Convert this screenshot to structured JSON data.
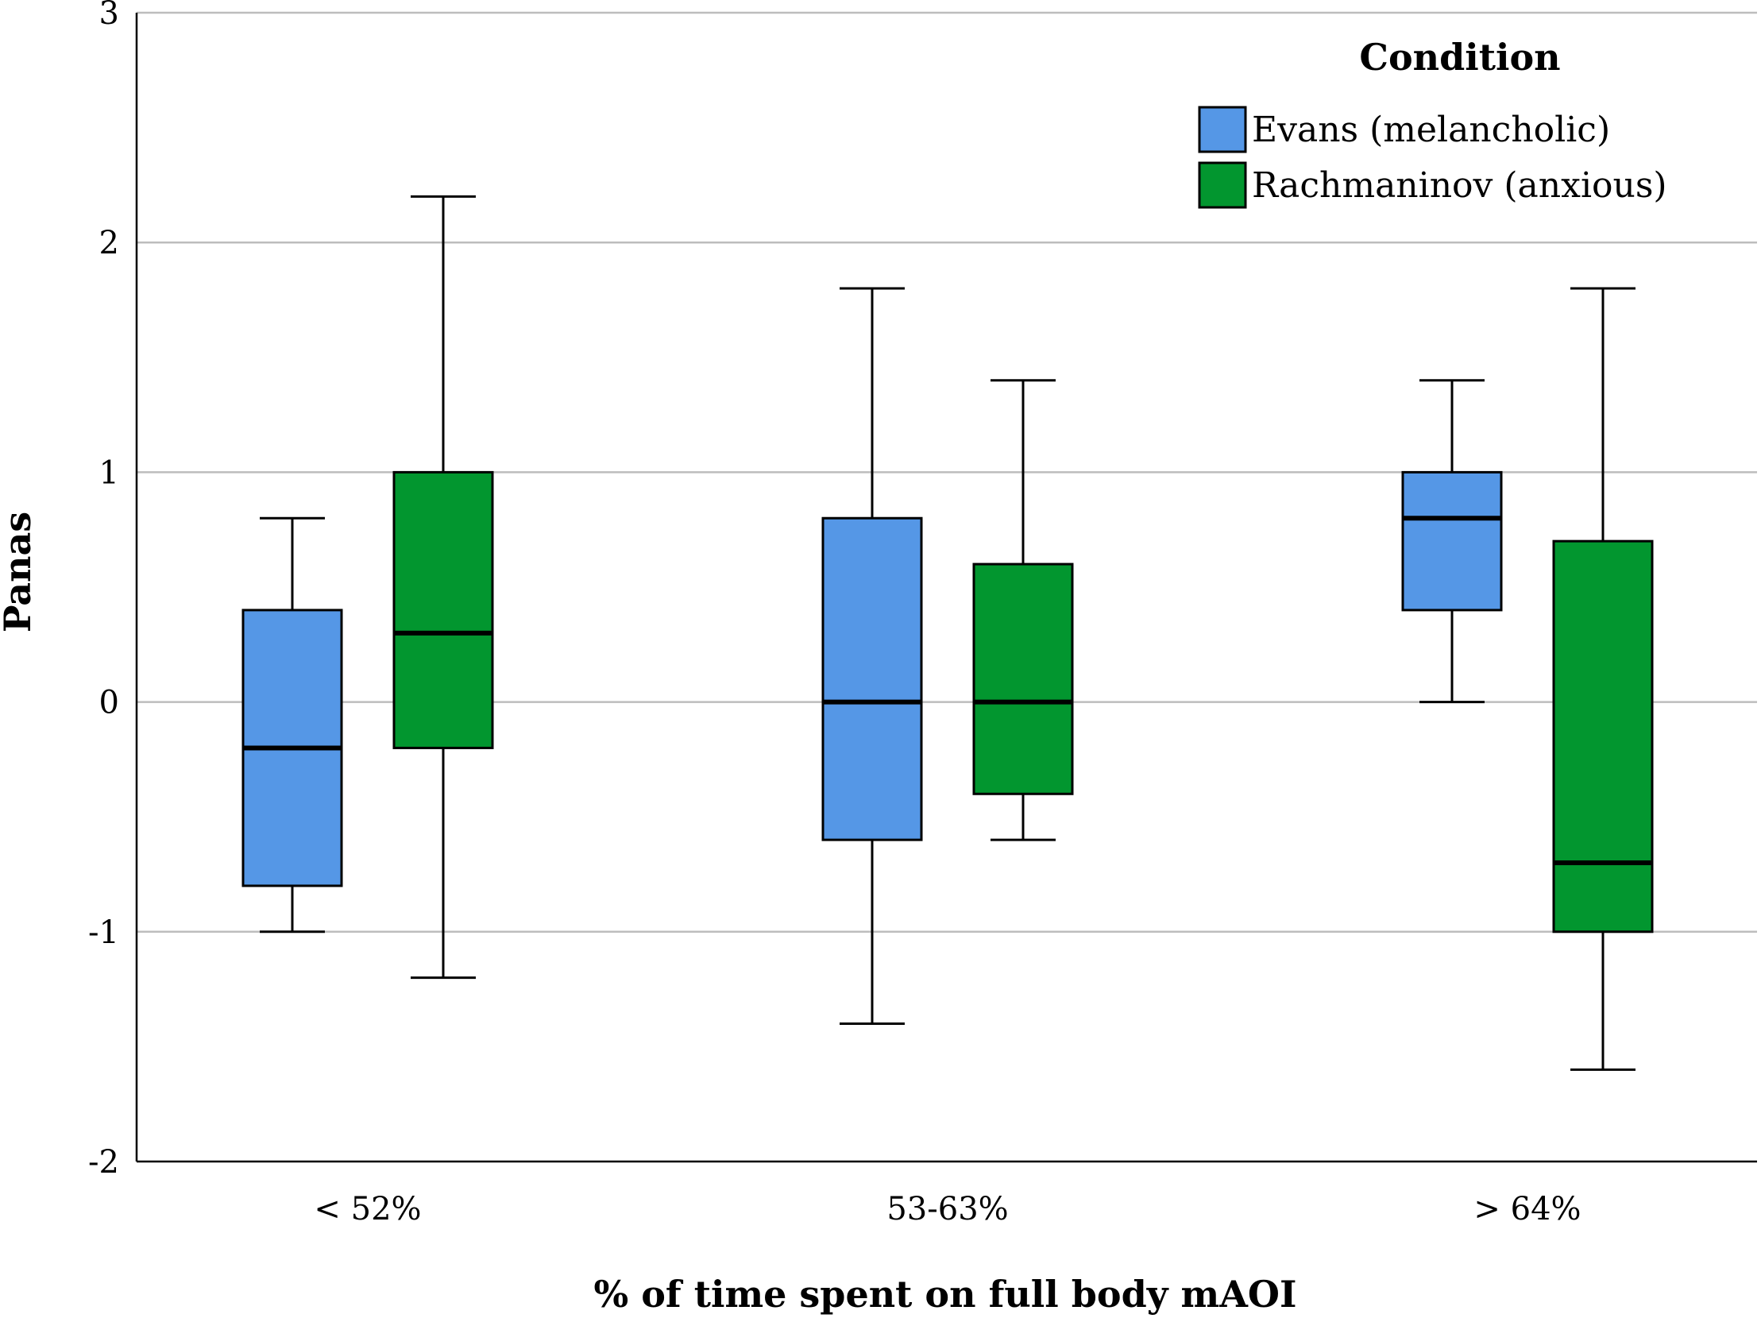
{
  "chart_data": {
    "type": "boxplot",
    "title": "",
    "xlabel": "% of time spent on full body mAOI",
    "ylabel": "Panas",
    "ylim": [
      -2,
      3
    ],
    "yticks": [
      -2,
      -1,
      0,
      1,
      2,
      3
    ],
    "grid": true,
    "legend": {
      "title": "Condition",
      "position": "top-right"
    },
    "categories": [
      "< 52%",
      "53-63%",
      "> 64%"
    ],
    "series": [
      {
        "name": "Evans (melancholic)",
        "color": "#5597e6",
        "boxes": [
          {
            "whisker_low": -1.0,
            "q1": -0.8,
            "median": -0.2,
            "q3": 0.4,
            "whisker_high": 0.8
          },
          {
            "whisker_low": -1.4,
            "q1": -0.6,
            "median": 0.0,
            "q3": 0.8,
            "whisker_high": 1.8
          },
          {
            "whisker_low": 0.0,
            "q1": 0.4,
            "median": 0.8,
            "q3": 1.0,
            "whisker_high": 1.4
          }
        ]
      },
      {
        "name": "Rachmaninov (anxious)",
        "color": "#02962f",
        "boxes": [
          {
            "whisker_low": -1.2,
            "q1": -0.2,
            "median": 0.3,
            "q3": 1.0,
            "whisker_high": 2.2
          },
          {
            "whisker_low": -0.6,
            "q1": -0.4,
            "median": 0.0,
            "q3": 0.6,
            "whisker_high": 1.4
          },
          {
            "whisker_low": -1.6,
            "q1": -1.0,
            "median": -0.7,
            "q3": 0.7,
            "whisker_high": 1.8
          }
        ]
      }
    ]
  }
}
